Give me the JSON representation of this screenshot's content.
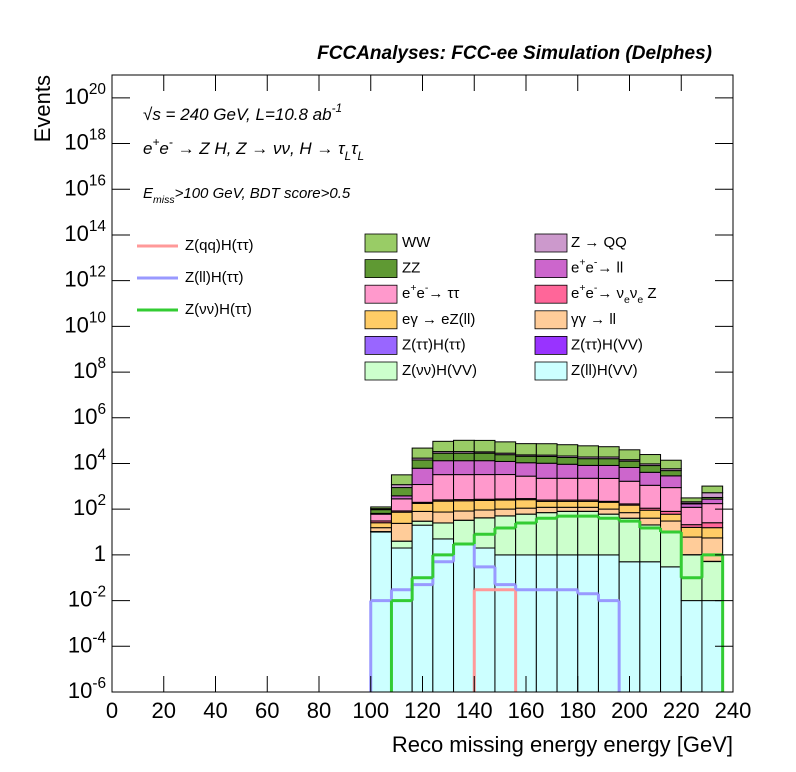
{
  "chart_data": {
    "type": "histogram",
    "stacked": true,
    "log_y": true,
    "title": "FCCAnalyses: FCC-ee Simulation (Delphes)",
    "annotations": [
      "√s = 240 GeV, L=10.8 ab^{-1}",
      "e^{+}e^{-} → Z H, Z → νν, H → τ_{L}τ_{L}",
      "E_{miss}>100 GeV, BDT score>0.5"
    ],
    "x_label": "Reco missing energy energy [GeV]",
    "y_label": "Events",
    "xlim": [
      0,
      240
    ],
    "xticks": [
      0,
      20,
      40,
      60,
      80,
      100,
      120,
      140,
      160,
      180,
      200,
      220,
      240
    ],
    "ylim": [
      1e-06,
      1e+21
    ],
    "yticks": [
      {
        "value": 1e-06,
        "label": "10^{-6}"
      },
      {
        "value": 0.0001,
        "label": "10^{-4}"
      },
      {
        "value": 0.01,
        "label": "10^{-2}"
      },
      1,
      {
        "value": 100,
        "label": "10^{2}"
      },
      {
        "value": 10000.0,
        "label": "10^{4}"
      },
      {
        "value": 1000000.0,
        "label": "10^{6}"
      },
      {
        "value": 100000000.0,
        "label": "10^{8}"
      },
      {
        "value": 10000000000.0,
        "label": "10^{10}"
      },
      {
        "value": 1000000000000.0,
        "label": "10^{12}"
      },
      {
        "value": 100000000000000.0,
        "label": "10^{14}"
      },
      {
        "value": 1e+16,
        "label": "10^{16}"
      },
      {
        "value": 1e+18,
        "label": "10^{18}"
      },
      {
        "value": 1e+20,
        "label": "10^{20}"
      }
    ],
    "bins": [
      100,
      108,
      116,
      124,
      132,
      140,
      148,
      156,
      164,
      172,
      180,
      188,
      196,
      204,
      212,
      220,
      228,
      236
    ],
    "series": [
      {
        "name": "WW",
        "color": "#99cc66",
        "values": [
          20,
          2000,
          30000,
          60000,
          70000,
          70000,
          60000,
          50000,
          50000,
          45000,
          40000,
          35000,
          25000,
          15000,
          8000,
          100,
          500
        ]
      },
      {
        "name": "Z → QQ",
        "color": "#cc99cc",
        "values": [
          10,
          300,
          3000,
          5000,
          5000,
          4000,
          4000,
          3000,
          3000,
          3000,
          3000,
          3000,
          2000,
          1500,
          1000,
          30,
          200
        ]
      },
      {
        "name": "ZZ",
        "color": "#5f9933",
        "values": [
          30,
          500,
          8000,
          15000,
          15000,
          15000,
          12000,
          10000,
          10000,
          9000,
          8000,
          8000,
          6000,
          4000,
          2000,
          10,
          50
        ]
      },
      {
        "name": "e^{+}e^{-}→ ll",
        "color": "#cc66cc",
        "values": [
          5,
          100,
          5000,
          10000,
          10000,
          10000,
          9000,
          8000,
          8000,
          7000,
          6000,
          6000,
          5000,
          3000,
          2000,
          50,
          100
        ]
      },
      {
        "name": "e^{+}e^{-}→ ττ",
        "color": "#ff99cc",
        "values": [
          30,
          200,
          1000,
          3000,
          3000,
          3000,
          3000,
          2500,
          2000,
          2000,
          2000,
          2000,
          1500,
          1000,
          800,
          100,
          150
        ]
      },
      {
        "name": "e^{+}e^{-}→ ν_{e}ν_{e} Z",
        "color": "#ff6699",
        "values": [
          5,
          10,
          20,
          30,
          30,
          30,
          30,
          30,
          30,
          30,
          30,
          20,
          20,
          20,
          20,
          5,
          10
        ]
      },
      {
        "name": "eγ → eZ(ll)",
        "color": "#ffcc66",
        "values": [
          10,
          50,
          100,
          150,
          150,
          150,
          150,
          150,
          100,
          100,
          100,
          100,
          80,
          50,
          30,
          10,
          10
        ]
      },
      {
        "name": "γγ → ll",
        "color": "#ffcc99",
        "values": [
          5,
          20,
          50,
          50,
          50,
          50,
          50,
          50,
          50,
          40,
          40,
          40,
          30,
          20,
          20,
          5,
          5
        ]
      },
      {
        "name": "Z(ττ)H(ττ)",
        "color": "#9966ff",
        "values": [
          0.005,
          0.005,
          0.005,
          0.005,
          0.005,
          0.005,
          0.005,
          0.005,
          0.005,
          0.005,
          0.005,
          0.005,
          0.005,
          0.005,
          0.005,
          0.005,
          0.005
        ]
      },
      {
        "name": "Z(ττ)H(VV)",
        "color": "#9933ff",
        "values": [
          0.01,
          0.01,
          0.01,
          0.01,
          0.01,
          0.01,
          0.01,
          0.01,
          0.01,
          0.01,
          0.01,
          0.01,
          0.01,
          0.01,
          0.01,
          0.01,
          0.01
        ]
      },
      {
        "name": "Z(νν)H(VV)",
        "color": "#ccffcc",
        "values": [
          0.5,
          2,
          10,
          20,
          30,
          40,
          50,
          60,
          70,
          80,
          80,
          60,
          40,
          20,
          10,
          1,
          0.5
        ]
      },
      {
        "name": "Z(ll)H(VV)",
        "color": "#ccffff",
        "values": [
          10,
          2,
          20,
          5,
          3,
          2,
          1,
          1,
          1,
          1,
          1,
          1,
          0.5,
          0.5,
          0.3,
          0.01,
          0.01
        ]
      }
    ],
    "lines": [
      {
        "name": "Z(qq)H(ττ)",
        "color": "#ff9999",
        "values": [
          null,
          null,
          null,
          null,
          null,
          0.03,
          0.03,
          null,
          null,
          null,
          null,
          null,
          null,
          null,
          null,
          null,
          null
        ]
      },
      {
        "name": "Z(ll)H(ττ)",
        "color": "#9999ff",
        "values": [
          0.01,
          0.03,
          0.05,
          0.5,
          3,
          0.3,
          0.05,
          0.03,
          0.03,
          0.03,
          0.02,
          0.01,
          null,
          null,
          null,
          null,
          null
        ]
      },
      {
        "name": "Z(νν)H(ττ)",
        "color": "#33cc33",
        "values": [
          null,
          0.01,
          0.1,
          1,
          3,
          8,
          15,
          25,
          40,
          50,
          50,
          40,
          30,
          15,
          10,
          0.1,
          1
        ]
      }
    ]
  }
}
